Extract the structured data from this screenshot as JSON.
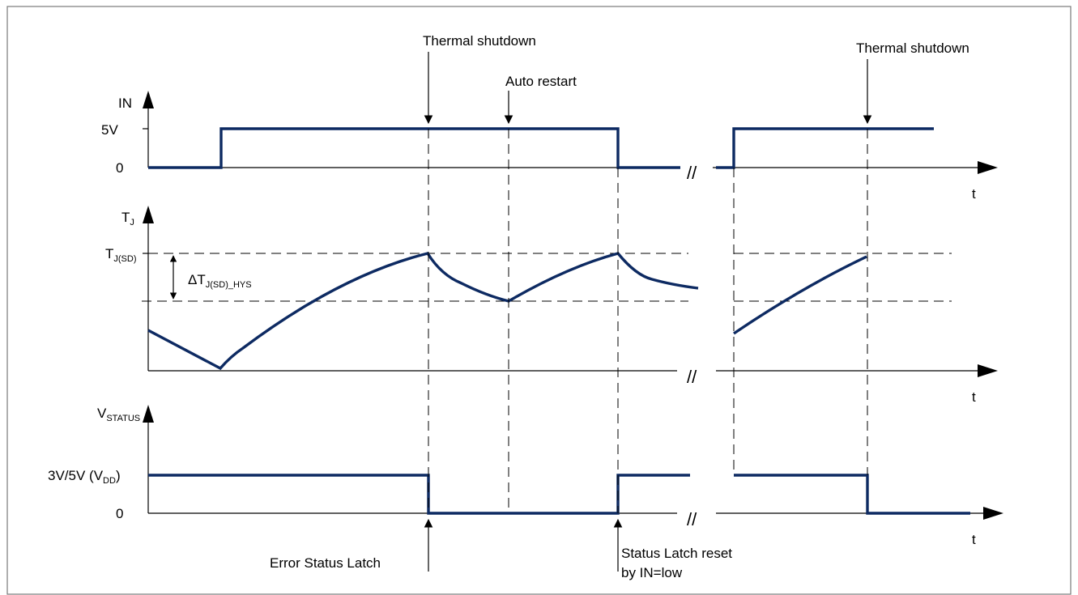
{
  "annotations": {
    "thermal_shutdown_1": "Thermal shutdown",
    "auto_restart": "Auto restart",
    "thermal_shutdown_2": "Thermal shutdown",
    "error_status_latch": "Error Status Latch",
    "status_latch_reset_line1": "Status Latch reset",
    "status_latch_reset_line2": "by IN=low"
  },
  "panel_in": {
    "axis_label": "IN",
    "level_high": "5V",
    "level_low": "0",
    "time_label": "t"
  },
  "panel_tj": {
    "axis_label_main": "T",
    "axis_label_sub": "J",
    "tjsd_main": "T",
    "tjsd_sub": "J(SD)",
    "hys_main": "ΔT",
    "hys_sub": "J(SD)_HYS",
    "time_label": "t"
  },
  "panel_status": {
    "axis_label_main": "V",
    "axis_label_sub": "STATUS",
    "level_high_main": "3V/5V (V",
    "level_high_sub": "DD",
    "level_high_close": ")",
    "level_low": "0",
    "time_label": "t"
  },
  "break_symbol": "//",
  "colors": {
    "signal": "#0d2a62",
    "axis": "#000000",
    "frame": "#7a7a7a"
  }
}
